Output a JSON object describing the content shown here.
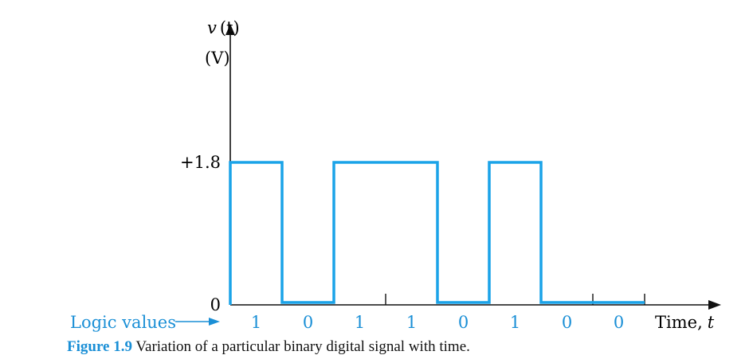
{
  "chart_data": {
    "type": "line",
    "ylabel_var": "v",
    "ylabel_arg": "(t)",
    "ylabel_unit": "(V)",
    "xlabel_text": "Time,",
    "xlabel_var": "t",
    "y_ticks": [
      {
        "value": 1.8,
        "label": "+1.8"
      },
      {
        "value": 0,
        "label": "0"
      }
    ],
    "ylim": [
      0,
      3.5
    ],
    "bit_period_count": 8,
    "logic_values_label": "Logic values",
    "bits": [
      1,
      0,
      1,
      1,
      0,
      1,
      0,
      0
    ],
    "bit_labels": [
      "1",
      "0",
      "1",
      "1",
      "0",
      "1",
      "0",
      "0"
    ],
    "levels": {
      "high": 1.8,
      "low": 0.03
    },
    "colors": {
      "signal": "#1aa3e8",
      "axis": "#111111",
      "label": "#1a8fd6"
    }
  },
  "caption": {
    "number": "Figure 1.9",
    "text": "Variation of a particular binary digital signal with time."
  }
}
